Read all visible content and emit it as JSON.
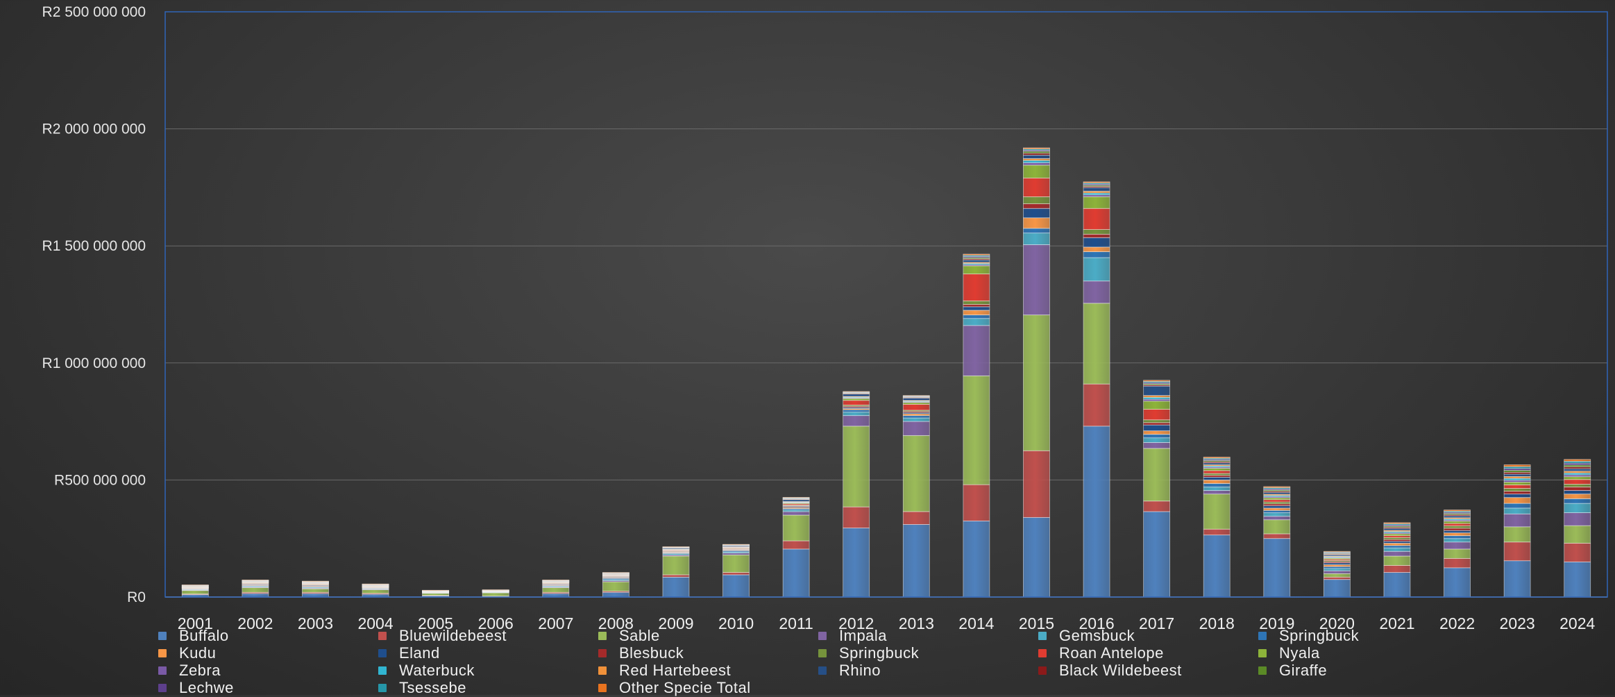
{
  "chart_data": {
    "type": "bar",
    "stacked": true,
    "title": "",
    "xlabel": "",
    "ylabel": "",
    "ylim": [
      0,
      2500000000
    ],
    "yticks": [
      {
        "value": 0,
        "label": "R0"
      },
      {
        "value": 500000000,
        "label": "R500 000 000"
      },
      {
        "value": 1000000000,
        "label": "R1 000 000 000"
      },
      {
        "value": 1500000000,
        "label": "R1 500 000 000"
      },
      {
        "value": 2000000000,
        "label": "R2 000 000 000"
      },
      {
        "value": 2500000000,
        "label": "R2 500 000 000"
      }
    ],
    "grid": true,
    "legend_position": "bottom",
    "categories": [
      "2001",
      "2002",
      "2003",
      "2004",
      "2005",
      "2006",
      "2007",
      "2008",
      "2009",
      "2010",
      "2011",
      "2012",
      "2013",
      "2014",
      "2015",
      "2016",
      "2017",
      "2018",
      "2019",
      "2020",
      "2021",
      "2022",
      "2023",
      "2024"
    ],
    "series": [
      {
        "name": "Buffalo",
        "color": "#4f81bd",
        "values": [
          10000000,
          15000000,
          15000000,
          12000000,
          5000000,
          3000000,
          15000000,
          20000000,
          85000000,
          95000000,
          205000000,
          295000000,
          310000000,
          325000000,
          340000000,
          730000000,
          365000000,
          265000000,
          250000000,
          75000000,
          105000000,
          125000000,
          155000000,
          150000000
        ]
      },
      {
        "name": "Bluewildebeest",
        "color": "#c0504d",
        "values": [
          3000000,
          5000000,
          5000000,
          4000000,
          2000000,
          1000000,
          5000000,
          5000000,
          10000000,
          10000000,
          35000000,
          90000000,
          55000000,
          155000000,
          285000000,
          180000000,
          45000000,
          25000000,
          20000000,
          10000000,
          30000000,
          40000000,
          80000000,
          80000000
        ]
      },
      {
        "name": "Sable",
        "color": "#9bbb59",
        "values": [
          15000000,
          20000000,
          15000000,
          15000000,
          10000000,
          15000000,
          20000000,
          40000000,
          80000000,
          75000000,
          110000000,
          345000000,
          325000000,
          465000000,
          580000000,
          345000000,
          225000000,
          150000000,
          60000000,
          15000000,
          40000000,
          40000000,
          65000000,
          75000000
        ]
      },
      {
        "name": "Impala",
        "color": "#8064a2",
        "values": [
          2000000,
          3000000,
          3000000,
          3000000,
          1000000,
          1000000,
          3000000,
          5000000,
          5000000,
          8000000,
          15000000,
          45000000,
          60000000,
          215000000,
          300000000,
          95000000,
          25000000,
          15000000,
          15000000,
          12000000,
          20000000,
          30000000,
          55000000,
          55000000
        ]
      },
      {
        "name": "Gemsbuck",
        "color": "#4bacc6",
        "values": [
          2000000,
          3000000,
          3000000,
          2000000,
          1000000,
          1000000,
          3000000,
          5000000,
          5000000,
          5000000,
          8000000,
          15000000,
          15000000,
          30000000,
          50000000,
          100000000,
          20000000,
          15000000,
          15000000,
          10000000,
          15000000,
          15000000,
          25000000,
          40000000
        ]
      },
      {
        "name": "Springbuck",
        "color": "#2e75b6",
        "values": [
          2000000,
          3000000,
          3000000,
          2000000,
          1000000,
          1000000,
          3000000,
          5000000,
          3000000,
          5000000,
          5000000,
          10000000,
          10000000,
          15000000,
          20000000,
          25000000,
          15000000,
          15000000,
          10000000,
          8000000,
          10000000,
          12000000,
          20000000,
          20000000
        ]
      },
      {
        "name": "Kudu",
        "color": "#f79646",
        "values": [
          2000000,
          3000000,
          3000000,
          2000000,
          1000000,
          1000000,
          3000000,
          3000000,
          3000000,
          3000000,
          5000000,
          5000000,
          8000000,
          20000000,
          45000000,
          20000000,
          15000000,
          15000000,
          10000000,
          8000000,
          10000000,
          12000000,
          25000000,
          20000000
        ]
      },
      {
        "name": "Eland",
        "color": "#1f4e8c",
        "values": [
          2000000,
          3000000,
          3000000,
          2000000,
          1000000,
          1000000,
          3000000,
          3000000,
          2000000,
          2000000,
          4000000,
          5000000,
          5000000,
          15000000,
          40000000,
          40000000,
          25000000,
          12000000,
          10000000,
          8000000,
          8000000,
          10000000,
          15000000,
          15000000
        ]
      },
      {
        "name": "Blesbuck",
        "color": "#a52a2a",
        "values": [
          1000000,
          2000000,
          2000000,
          1000000,
          500000,
          500000,
          2000000,
          2000000,
          2000000,
          2000000,
          3000000,
          5000000,
          5000000,
          10000000,
          20000000,
          15000000,
          10000000,
          8000000,
          8000000,
          5000000,
          8000000,
          10000000,
          12000000,
          15000000
        ]
      },
      {
        "name": "Springbuck",
        "color": "#76933c",
        "values": [
          1000000,
          2000000,
          2000000,
          1000000,
          500000,
          500000,
          2000000,
          2000000,
          2000000,
          2000000,
          3000000,
          5000000,
          5000000,
          15000000,
          30000000,
          20000000,
          12000000,
          8000000,
          8000000,
          5000000,
          8000000,
          10000000,
          12000000,
          12000000
        ]
      },
      {
        "name": "Roan Antelope",
        "color": "#e03c31",
        "values": [
          1000000,
          2000000,
          2000000,
          1000000,
          500000,
          500000,
          2000000,
          2000000,
          3000000,
          3000000,
          5000000,
          20000000,
          25000000,
          115000000,
          80000000,
          90000000,
          45000000,
          12000000,
          10000000,
          5000000,
          8000000,
          10000000,
          15000000,
          20000000
        ]
      },
      {
        "name": "Nyala",
        "color": "#8db33a",
        "values": [
          1000000,
          2000000,
          2000000,
          1000000,
          500000,
          500000,
          2000000,
          2000000,
          2000000,
          2000000,
          4000000,
          8000000,
          8000000,
          35000000,
          55000000,
          50000000,
          35000000,
          10000000,
          8000000,
          5000000,
          8000000,
          10000000,
          12000000,
          12000000
        ]
      },
      {
        "name": "Zebra",
        "color": "#7a5aa6",
        "values": [
          1000000,
          1000000,
          1000000,
          1000000,
          500000,
          500000,
          1000000,
          1000000,
          1000000,
          1000000,
          2000000,
          3000000,
          3000000,
          5000000,
          10000000,
          8000000,
          8000000,
          5000000,
          5000000,
          3000000,
          5000000,
          5000000,
          8000000,
          8000000
        ]
      },
      {
        "name": "Waterbuck",
        "color": "#31b5d1",
        "values": [
          1000000,
          1000000,
          1000000,
          1000000,
          500000,
          500000,
          1000000,
          1000000,
          1000000,
          1000000,
          2000000,
          3000000,
          3000000,
          5000000,
          10000000,
          8000000,
          8000000,
          5000000,
          5000000,
          3000000,
          5000000,
          5000000,
          8000000,
          8000000
        ]
      },
      {
        "name": "Red Hartebeest",
        "color": "#f0913a",
        "values": [
          1000000,
          1000000,
          1000000,
          1000000,
          500000,
          500000,
          1000000,
          1000000,
          1000000,
          1000000,
          2000000,
          3000000,
          3000000,
          5000000,
          8000000,
          8000000,
          8000000,
          5000000,
          5000000,
          3000000,
          5000000,
          5000000,
          8000000,
          8000000
        ]
      },
      {
        "name": "Rhino",
        "color": "#264f86",
        "values": [
          2000000,
          2000000,
          2000000,
          2000000,
          1000000,
          1000000,
          2000000,
          3000000,
          5000000,
          5000000,
          8000000,
          10000000,
          10000000,
          10000000,
          15000000,
          15000000,
          40000000,
          8000000,
          8000000,
          5000000,
          8000000,
          8000000,
          10000000,
          10000000
        ]
      },
      {
        "name": "Black Wildebeest",
        "color": "#8b1a1a",
        "values": [
          1000000,
          1000000,
          1000000,
          1000000,
          500000,
          500000,
          1000000,
          1000000,
          1000000,
          1000000,
          2000000,
          3000000,
          3000000,
          5000000,
          8000000,
          5000000,
          5000000,
          5000000,
          5000000,
          3000000,
          5000000,
          5000000,
          8000000,
          8000000
        ]
      },
      {
        "name": "Giraffe",
        "color": "#5b8a26",
        "values": [
          1000000,
          1000000,
          1000000,
          1000000,
          500000,
          500000,
          1000000,
          1000000,
          1000000,
          1000000,
          2000000,
          2000000,
          2000000,
          5000000,
          8000000,
          5000000,
          5000000,
          5000000,
          5000000,
          3000000,
          5000000,
          5000000,
          8000000,
          8000000
        ]
      },
      {
        "name": "Lechwe",
        "color": "#5d3f8c",
        "values": [
          1000000,
          1000000,
          1000000,
          1000000,
          500000,
          500000,
          1000000,
          1000000,
          1000000,
          1000000,
          2000000,
          2000000,
          2000000,
          5000000,
          5000000,
          5000000,
          5000000,
          5000000,
          5000000,
          3000000,
          5000000,
          5000000,
          8000000,
          8000000
        ]
      },
      {
        "name": "Tsessebe",
        "color": "#2596a8",
        "values": [
          1000000,
          1000000,
          1000000,
          1000000,
          500000,
          500000,
          1000000,
          1000000,
          1000000,
          1000000,
          2000000,
          2000000,
          2000000,
          5000000,
          5000000,
          5000000,
          5000000,
          5000000,
          5000000,
          3000000,
          5000000,
          5000000,
          8000000,
          8000000
        ]
      },
      {
        "name": "Other Specie Total",
        "color": "#e8731f",
        "values": [
          1000000,
          1000000,
          1000000,
          1000000,
          500000,
          500000,
          1000000,
          1000000,
          1000000,
          1000000,
          2000000,
          2000000,
          2000000,
          5000000,
          5000000,
          5000000,
          5000000,
          5000000,
          5000000,
          3000000,
          5000000,
          5000000,
          8000000,
          8000000
        ]
      }
    ]
  }
}
